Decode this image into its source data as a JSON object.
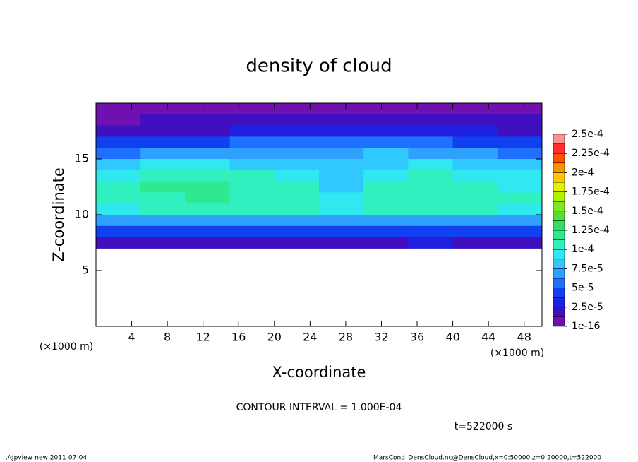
{
  "chart_data": {
    "type": "contour",
    "title": "density of cloud",
    "x_label": "X-coordinate",
    "y_label": "Z-coordinate",
    "x_unit": "(×1000 m)",
    "y_unit": "(×1000 m)",
    "annotation": "CONTOUR INTERVAL = 1.000E-04",
    "time_label": "t=522000 s",
    "footer_left": "./gpview-new  2011-07-04",
    "footer_right": "MarsCond_DensCloud.nc@DensCloud,x=0:50000,z=0:20000,t=522000",
    "xlim": [
      0,
      50
    ],
    "ylim": [
      0,
      20
    ],
    "xticks": [
      4,
      8,
      12,
      16,
      20,
      24,
      28,
      32,
      36,
      40,
      44,
      48
    ],
    "yticks": [
      5,
      10,
      15
    ],
    "x": [
      2.5,
      7.5,
      12.5,
      17.5,
      22.5,
      27.5,
      32.5,
      37.5,
      42.5,
      47.5
    ],
    "y": [
      19.5,
      18.5,
      17.5,
      16.5,
      15.5,
      14.5,
      13.5,
      12.5,
      11.5,
      10.5,
      9.5,
      8.5,
      7.5
    ],
    "z_values": [
      [
        8e-06,
        8e-06,
        9e-06,
        9e-06,
        1e-05,
        1e-05,
        1.1e-05,
        1e-05,
        9e-06,
        8e-06
      ],
      [
        1.2e-05,
        1.3e-05,
        1.4e-05,
        1.5e-05,
        1.6e-05,
        1.8e-05,
        2e-05,
        1.8e-05,
        1.5e-05,
        1.3e-05
      ],
      [
        2e-05,
        2.2e-05,
        2.4e-05,
        2.6e-05,
        2.8e-05,
        3e-05,
        3.2e-05,
        3e-05,
        2.6e-05,
        2.4e-05
      ],
      [
        3.8e-05,
        4.2e-05,
        4.6e-05,
        5e-05,
        5.4e-05,
        5.8e-05,
        6e-05,
        5.6e-05,
        4.8e-05,
        4.4e-05
      ],
      [
        6e-05,
        6.8e-05,
        7.2e-05,
        7e-05,
        6.8e-05,
        7.2e-05,
        7.6e-05,
        7.2e-05,
        6.4e-05,
        6.2e-05
      ],
      [
        7.8e-05,
        9e-05,
        9.6e-05,
        8.6e-05,
        8e-05,
        7.8e-05,
        8.6e-05,
        8.8e-05,
        7.8e-05,
        7.6e-05
      ],
      [
        9.2e-05,
        0.000106,
        0.000112,
        0.000102,
        9.4e-05,
        8.6e-05,
        9.6e-05,
        0.000102,
        9.4e-05,
        9e-05
      ],
      [
        0.000102,
        0.000114,
        0.000116,
        0.00011,
        0.000102,
        7.8e-05,
        0.000104,
        0.000106,
        0.000102,
        9.8e-05
      ],
      [
        0.000104,
        0.000112,
        0.000114,
        0.000112,
        0.000106,
        9.4e-05,
        0.000108,
        0.000108,
        0.000106,
        0.000102
      ],
      [
        9.8e-05,
        0.000102,
        0.000104,
        0.000102,
        0.0001,
        9.8e-05,
        0.0001,
        0.000102,
        0.0001,
        9.8e-05
      ],
      [
        6.4e-05,
        6.6e-05,
        6.8e-05,
        6.6e-05,
        6.6e-05,
        6.6e-05,
        6.6e-05,
        6.8e-05,
        6.6e-05,
        6.4e-05
      ],
      [
        4.2e-05,
        4.4e-05,
        4.4e-05,
        4.4e-05,
        4.4e-05,
        4.4e-05,
        4.6e-05,
        4.4e-05,
        4.2e-05,
        4.2e-05
      ],
      [
        2.2e-05,
        2.4e-05,
        2.4e-05,
        2.2e-05,
        2.4e-05,
        2.4e-05,
        2.4e-05,
        2.6e-05,
        2.4e-05,
        2.2e-05
      ]
    ],
    "levels": [
      1e-16,
      1.25e-05,
      2.5e-05,
      3.75e-05,
      5e-05,
      6.25e-05,
      7.5e-05,
      8.75e-05,
      0.0001,
      0.0001125,
      0.000125,
      0.0001375,
      0.00015,
      0.0001625,
      0.000175,
      0.0001875,
      0.0002,
      0.0002125,
      0.000225,
      0.0002375,
      0.00025
    ],
    "colors": [
      "#7010b0",
      "#4010c0",
      "#2020e0",
      "#1040f0",
      "#2070ff",
      "#30a0ff",
      "#30c8ff",
      "#30e8f0",
      "#30f0c0",
      "#30e890",
      "#30e060",
      "#50e030",
      "#80e820",
      "#b0f000",
      "#e8f000",
      "#ffc800",
      "#ff9000",
      "#ff5000",
      "#ff3030",
      "#ff9090"
    ],
    "colorbar_ticks": [
      {
        "value": 1e-16,
        "label": "1e-16"
      },
      {
        "value": 2.5e-05,
        "label": "2.5e-5"
      },
      {
        "value": 5e-05,
        "label": "5e-5"
      },
      {
        "value": 7.5e-05,
        "label": "7.5e-5"
      },
      {
        "value": 0.0001,
        "label": "1e-4"
      },
      {
        "value": 0.000125,
        "label": "1.25e-4"
      },
      {
        "value": 0.00015,
        "label": "1.5e-4"
      },
      {
        "value": 0.000175,
        "label": "1.75e-4"
      },
      {
        "value": 0.0002,
        "label": "2e-4"
      },
      {
        "value": 0.000225,
        "label": "2.25e-4"
      },
      {
        "value": 0.00025,
        "label": "2.5e-4"
      }
    ]
  }
}
